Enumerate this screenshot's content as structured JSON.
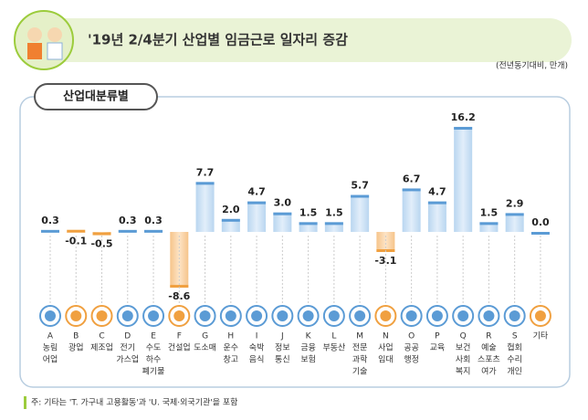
{
  "chart_data": {
    "type": "bar",
    "title": "'19년 2/4분기 산업별 임금근로 일자리 증감",
    "subtitle": "(전년동기대비, 만개)",
    "panel_title": "산업대분류별",
    "footnote": "주: 기타는 'T. 가구내 고용활동'과 'U. 국제·외국기관'을 포함",
    "categories": [
      "A",
      "B",
      "C",
      "D",
      "E",
      "F",
      "G",
      "H",
      "I",
      "J",
      "K",
      "L",
      "M",
      "N",
      "O",
      "P",
      "Q",
      "R",
      "S",
      null
    ],
    "names": [
      [
        "농림",
        "어업"
      ],
      [
        "광업"
      ],
      [
        "제조업"
      ],
      [
        "전기",
        "가스업"
      ],
      [
        "수도",
        "하수",
        "폐기물"
      ],
      [
        "건설업"
      ],
      [
        "도소매"
      ],
      [
        "운수",
        "창고"
      ],
      [
        "숙박",
        "음식"
      ],
      [
        "정보",
        "통신"
      ],
      [
        "금융",
        "보험"
      ],
      [
        "부동산"
      ],
      [
        "전문",
        "과학",
        "기술"
      ],
      [
        "사업",
        "임대"
      ],
      [
        "공공",
        "행정"
      ],
      [
        "교육"
      ],
      [
        "보건",
        "사회",
        "복지"
      ],
      [
        "예술",
        "스포츠",
        "여가"
      ],
      [
        "협회",
        "수리",
        "개인"
      ],
      [
        "기타"
      ]
    ],
    "values": [
      0.3,
      -0.1,
      -0.5,
      0.3,
      0.3,
      -8.6,
      7.7,
      2.0,
      4.7,
      3.0,
      1.5,
      1.5,
      5.7,
      -3.1,
      6.7,
      4.7,
      16.2,
      1.5,
      2.9,
      0.0
    ],
    "value_labels": [
      "0.3",
      "-0.1",
      "-0.5",
      "0.3",
      "0.3",
      "-8.6",
      "7.7",
      "2.0",
      "4.7",
      "3.0",
      "1.5",
      "1.5",
      "5.7",
      "-3.1",
      "6.7",
      "4.7",
      "16.2",
      "1.5",
      "2.9",
      "0.0"
    ],
    "color_positive": "#5b9bd5",
    "color_negative": "#f0a040"
  }
}
